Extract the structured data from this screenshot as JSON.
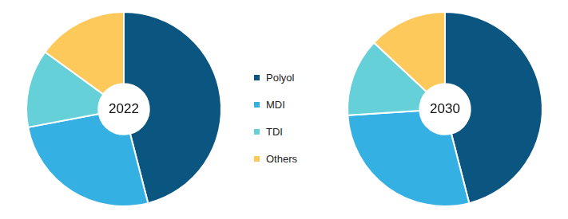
{
  "chart_data": [
    {
      "type": "doughnut",
      "title": "2022",
      "categories": [
        "Polyol",
        "MDI",
        "TDI",
        "Others"
      ],
      "values": [
        46,
        26,
        13,
        15
      ],
      "colors": [
        "#0b5680",
        "#35b0e3",
        "#66d0d9",
        "#fdc95a"
      ],
      "legend": "right"
    },
    {
      "type": "doughnut",
      "title": "2030",
      "categories": [
        "Polyol",
        "MDI",
        "TDI",
        "Others"
      ],
      "values": [
        46,
        28,
        13,
        13
      ],
      "colors": [
        "#0b5680",
        "#35b0e3",
        "#66d0d9",
        "#fdc95a"
      ]
    }
  ]
}
